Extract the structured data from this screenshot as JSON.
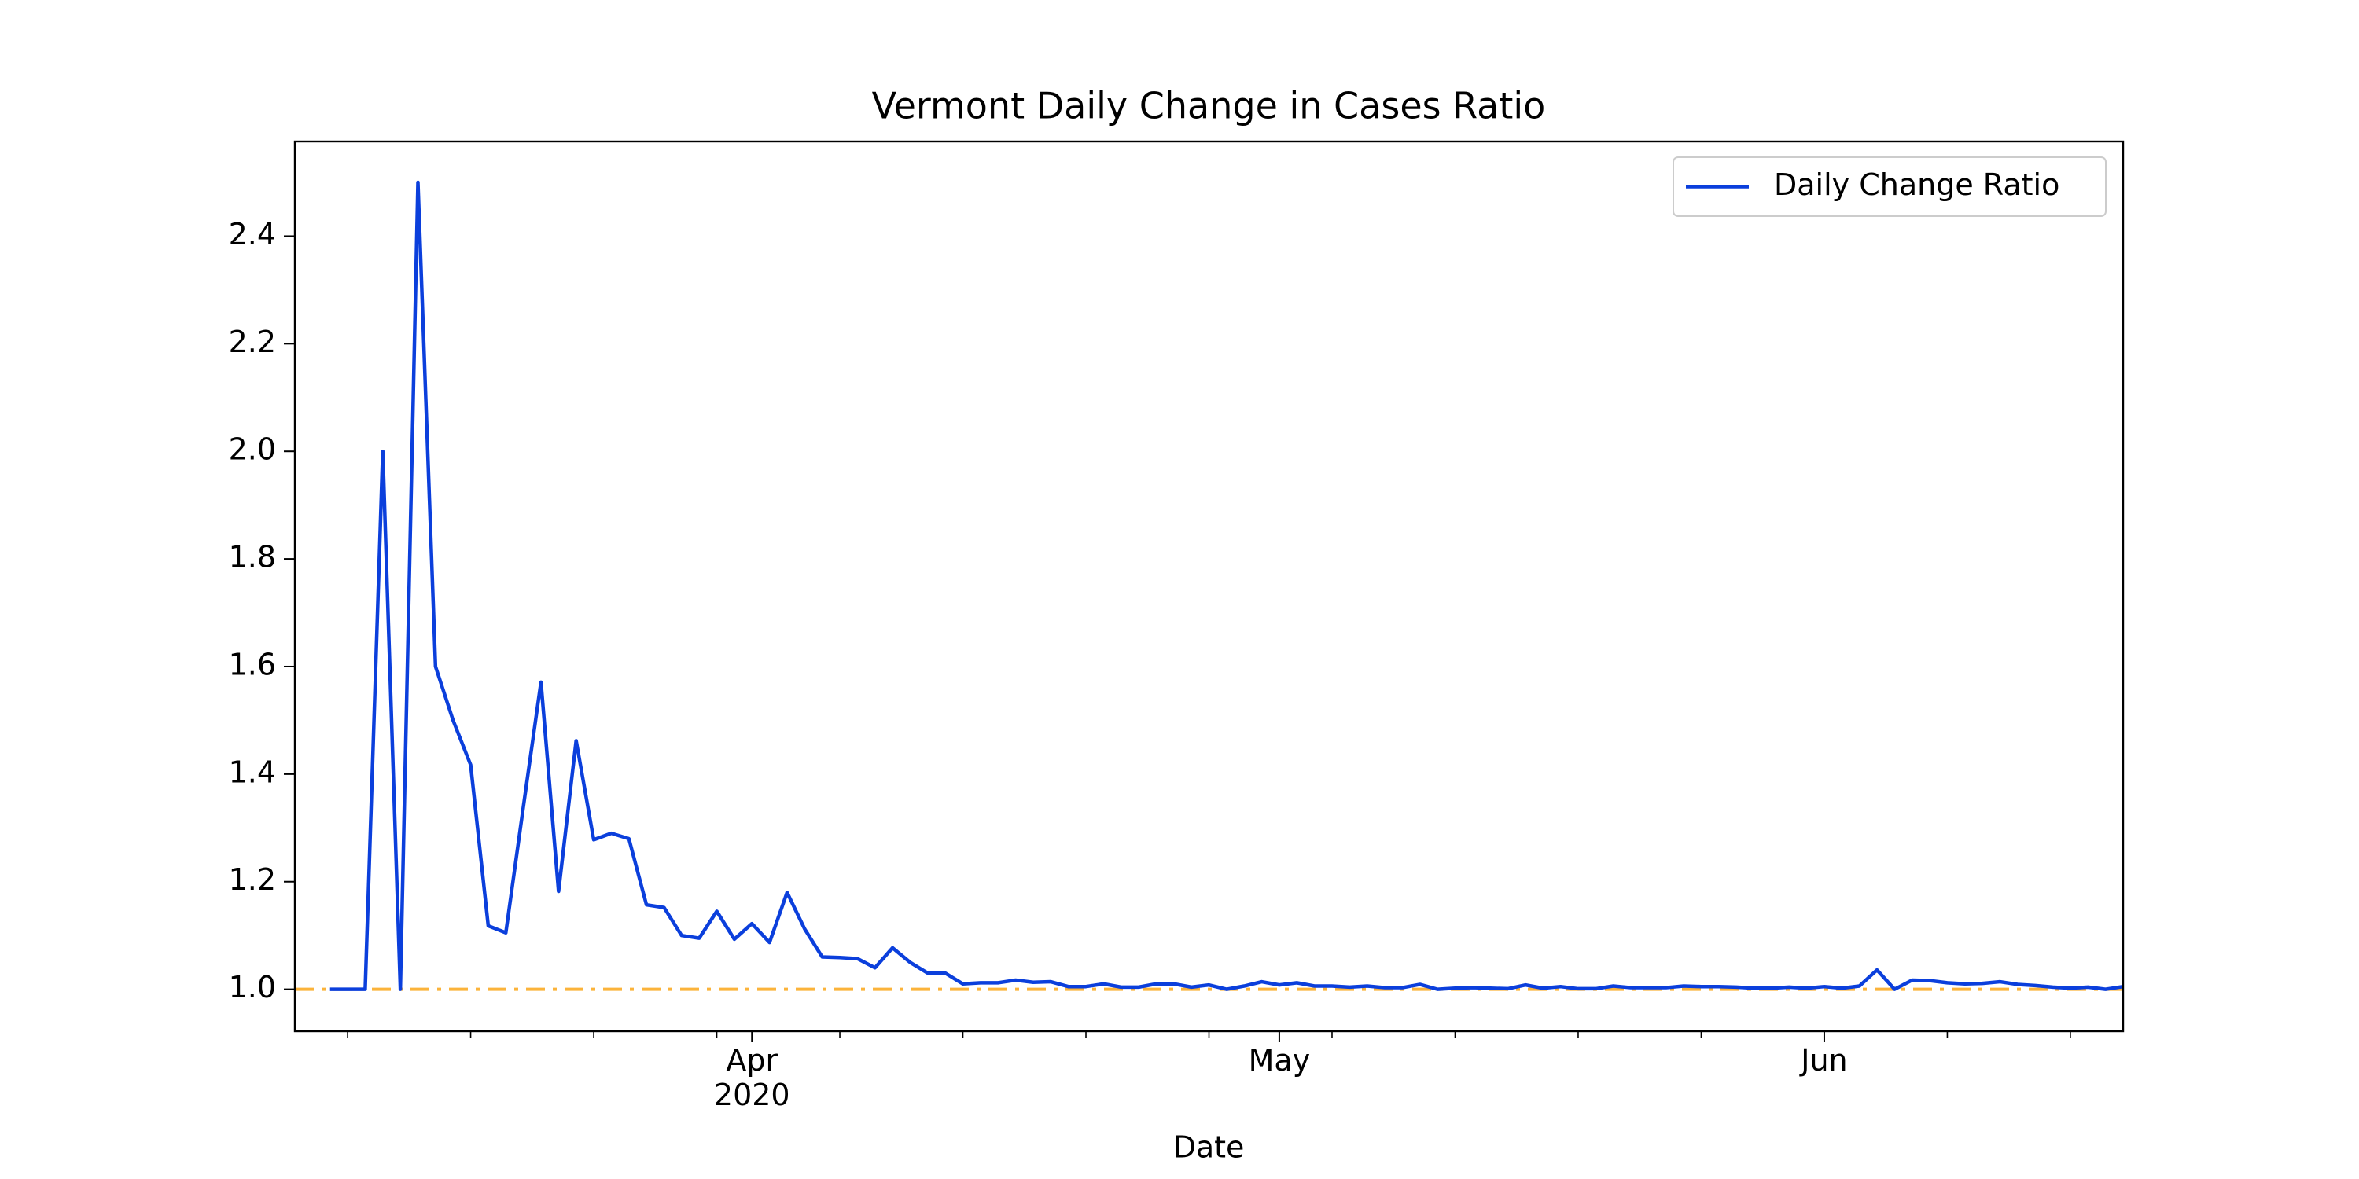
{
  "chart_data": {
    "type": "line",
    "title": "Vermont Daily Change in Cases Ratio",
    "xlabel": "Date",
    "x": [
      68,
      69,
      70,
      71,
      72,
      73,
      74,
      75,
      76,
      77,
      78,
      79,
      80,
      81,
      82,
      83,
      84,
      85,
      86,
      87,
      88,
      89,
      90,
      91,
      92,
      93,
      94,
      95,
      96,
      97,
      98,
      99,
      100,
      101,
      102,
      103,
      104,
      105,
      106,
      107,
      108,
      109,
      110,
      111,
      112,
      113,
      114,
      115,
      116,
      117,
      118,
      119,
      120,
      121,
      122,
      123,
      124,
      125,
      126,
      127,
      128,
      129,
      130,
      131,
      132,
      133,
      134,
      135,
      136,
      137,
      138,
      139,
      140,
      141,
      142,
      143,
      144,
      145,
      146,
      147,
      148,
      149,
      150,
      151,
      152,
      153,
      154,
      155,
      156,
      157,
      158,
      159,
      160,
      161,
      162,
      163,
      164,
      165,
      166,
      167,
      168,
      169,
      170
    ],
    "series": [
      {
        "name": "Daily Change Ratio",
        "color": "#0b3fdc",
        "values": [
          1.0,
          1.0,
          1.0,
          2.0,
          1.0,
          2.5,
          1.6,
          1.5,
          1.417,
          1.118,
          1.105,
          1.34,
          1.571,
          1.182,
          1.462,
          1.278,
          1.29,
          1.28,
          1.157,
          1.152,
          1.1,
          1.095,
          1.145,
          1.093,
          1.122,
          1.087,
          1.18,
          1.112,
          1.06,
          1.059,
          1.057,
          1.04,
          1.077,
          1.05,
          1.03,
          1.03,
          1.01,
          1.012,
          1.012,
          1.017,
          1.013,
          1.014,
          1.005,
          1.005,
          1.01,
          1.004,
          1.004,
          1.01,
          1.01,
          1.004,
          1.008,
          1.0,
          1.006,
          1.014,
          1.008,
          1.012,
          1.006,
          1.006,
          1.004,
          1.006,
          1.003,
          1.003,
          1.009,
          1.0,
          1.002,
          1.003,
          1.002,
          1.001,
          1.008,
          1.002,
          1.005,
          1.001,
          1.001,
          1.006,
          1.003,
          1.003,
          1.003,
          1.006,
          1.005,
          1.005,
          1.004,
          1.002,
          1.002,
          1.004,
          1.002,
          1.005,
          1.002,
          1.006,
          1.036,
          1.0,
          1.017,
          1.016,
          1.012,
          1.01,
          1.011,
          1.014,
          1.009,
          1.007,
          1.004,
          1.002,
          1.004,
          1.0,
          1.005
        ]
      }
    ],
    "reference_line": {
      "value": 1.0,
      "color": "#fbb33a",
      "style": "dashdot"
    },
    "xlim": [
      66,
      170
    ],
    "xticks": [
      {
        "value": 92,
        "label": "Apr\n2020"
      },
      {
        "value": 122,
        "label": "May"
      },
      {
        "value": 153,
        "label": "Jun"
      }
    ],
    "xminorticks": [
      69,
      76,
      83,
      90,
      97,
      104,
      111,
      118,
      125,
      132,
      139,
      146,
      160,
      167
    ],
    "ylim": [
      0.922,
      2.576
    ],
    "yticks": [
      {
        "value": 1.0,
        "label": "1.0"
      },
      1.2,
      1.4,
      1.6,
      1.8,
      {
        "value": 2.0,
        "label": "2.0"
      },
      2.2,
      2.4
    ],
    "legend": "upper right",
    "grid": false
  }
}
